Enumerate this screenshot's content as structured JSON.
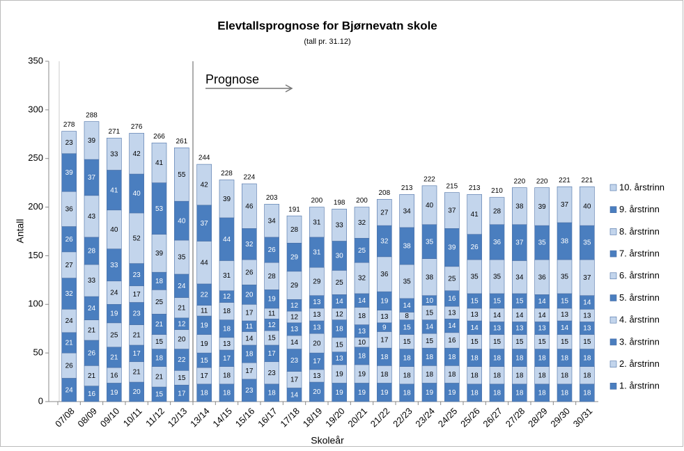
{
  "chart_data": {
    "type": "stacked_bar",
    "title": "Elevtallsprognose for Bjørnevatn skole",
    "subtitle": "(tall pr. 31.12)",
    "x_label": "Skoleår",
    "y_label": "Antall",
    "annotation": "Prognose",
    "categories": [
      "07/08",
      "08/09",
      "09/10",
      "10/11",
      "11/12",
      "12/13",
      "13/14",
      "14/15",
      "15/16",
      "16/17",
      "17/18",
      "18/19",
      "19/20",
      "20/21",
      "21/22",
      "22/23",
      "23/24",
      "24/25",
      "25/26",
      "26/27",
      "27/28",
      "28/29",
      "29/30",
      "30/31"
    ],
    "series": [
      {
        "name": "1. årstrinn",
        "color": "#4a7ebf",
        "values": [
          24,
          16,
          19,
          20,
          15,
          17,
          18,
          18,
          23,
          18,
          14,
          20,
          19,
          19,
          19,
          18,
          19,
          19,
          18,
          18,
          18,
          18,
          18,
          18
        ]
      },
      {
        "name": "2. årstrinn",
        "color": "#c3d5ec",
        "values": [
          26,
          21,
          16,
          21,
          21,
          15,
          17,
          18,
          17,
          23,
          17,
          13,
          19,
          19,
          18,
          18,
          18,
          18,
          18,
          18,
          18,
          18,
          18,
          18
        ]
      },
      {
        "name": "3. årstrinn",
        "color": "#4a7ebf",
        "values": [
          21,
          26,
          21,
          17,
          18,
          22,
          15,
          17,
          18,
          17,
          23,
          17,
          13,
          18,
          18,
          18,
          18,
          18,
          18,
          18,
          18,
          18,
          18,
          18
        ]
      },
      {
        "name": "4. årstrinn",
        "color": "#c3d5ec",
        "values": [
          24,
          21,
          25,
          21,
          15,
          20,
          19,
          13,
          14,
          15,
          14,
          20,
          15,
          10,
          17,
          15,
          15,
          16,
          15,
          15,
          15,
          15,
          15,
          15
        ]
      },
      {
        "name": "5. årstrinn",
        "color": "#4a7ebf",
        "values": [
          32,
          24,
          19,
          23,
          21,
          12,
          19,
          18,
          11,
          12,
          13,
          13,
          18,
          13,
          9,
          15,
          14,
          14,
          14,
          13,
          13,
          13,
          14,
          13
        ]
      },
      {
        "name": "6. årstrinn",
        "color": "#c3d5ec",
        "values": [
          27,
          33,
          24,
          17,
          25,
          21,
          11,
          18,
          17,
          11,
          12,
          13,
          12,
          18,
          13,
          8,
          15,
          13,
          13,
          14,
          14,
          14,
          13,
          13
        ]
      },
      {
        "name": "7. årstrinn",
        "color": "#4a7ebf",
        "values": [
          26,
          28,
          33,
          23,
          18,
          24,
          22,
          12,
          20,
          19,
          12,
          13,
          14,
          14,
          19,
          14,
          10,
          16,
          15,
          15,
          15,
          14,
          15,
          14
        ]
      },
      {
        "name": "8. årstrinn",
        "color": "#c3d5ec",
        "values": [
          36,
          43,
          40,
          52,
          39,
          35,
          44,
          31,
          26,
          28,
          29,
          29,
          25,
          32,
          36,
          35,
          38,
          25,
          35,
          35,
          34,
          36,
          35,
          37
        ]
      },
      {
        "name": "9. årstrinn",
        "color": "#4a7ebf",
        "values": [
          39,
          37,
          41,
          40,
          53,
          40,
          37,
          44,
          32,
          26,
          29,
          31,
          30,
          25,
          32,
          38,
          35,
          39,
          26,
          36,
          37,
          35,
          38,
          35
        ]
      },
      {
        "name": "10. årstrinn",
        "color": "#c3d5ec",
        "values": [
          23,
          39,
          33,
          42,
          41,
          55,
          42,
          39,
          46,
          34,
          28,
          31,
          33,
          32,
          27,
          34,
          40,
          37,
          41,
          28,
          38,
          39,
          37,
          40
        ]
      }
    ],
    "totals": [
      278,
      288,
      271,
      276,
      266,
      261,
      244,
      228,
      224,
      203,
      191,
      200,
      198,
      200,
      208,
      213,
      222,
      215,
      213,
      210,
      220,
      220,
      221,
      221
    ],
    "ylim": [
      0,
      350
    ],
    "yticks": [
      0,
      50,
      100,
      150,
      200,
      250,
      300,
      350
    ],
    "legend": "right"
  }
}
